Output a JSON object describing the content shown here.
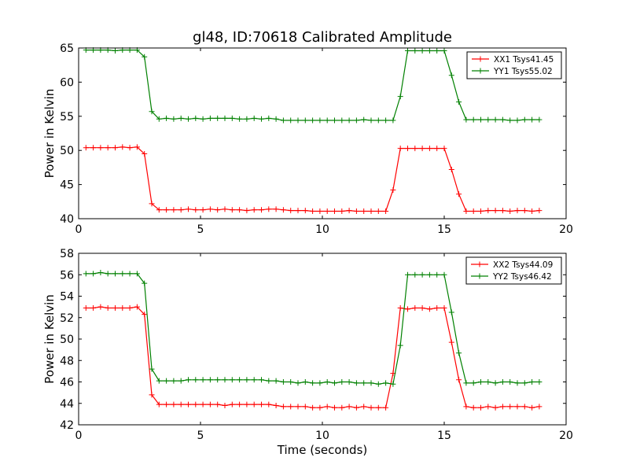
{
  "figure": {
    "title": "gl48, ID:70618 Calibrated Amplitude",
    "xlabel": "Time (seconds)"
  },
  "chart_data": [
    {
      "type": "line",
      "title": "gl48, ID:70618 Calibrated Amplitude",
      "xlabel": "",
      "ylabel": "Power in Kelvin",
      "xlim": [
        0,
        20
      ],
      "ylim": [
        40,
        65
      ],
      "xticks": [
        0,
        5,
        10,
        15,
        20
      ],
      "yticks": [
        40,
        45,
        50,
        55,
        60,
        65
      ],
      "grid": false,
      "legend_position": "top-right",
      "x": [
        0.3,
        0.6,
        0.9,
        1.2,
        1.5,
        1.8,
        2.1,
        2.4,
        2.7,
        3.0,
        3.3,
        3.6,
        3.9,
        4.2,
        4.5,
        4.8,
        5.1,
        5.4,
        5.7,
        6.0,
        6.3,
        6.6,
        6.9,
        7.2,
        7.5,
        7.8,
        8.1,
        8.4,
        8.7,
        9.0,
        9.3,
        9.6,
        9.9,
        10.2,
        10.5,
        10.8,
        11.1,
        11.4,
        11.7,
        12.0,
        12.3,
        12.6,
        12.9,
        13.2,
        13.5,
        13.8,
        14.1,
        14.4,
        14.7,
        15.0,
        15.3,
        15.6,
        15.9,
        16.2,
        16.5,
        16.8,
        17.1,
        17.4,
        17.7,
        18.0,
        18.3,
        18.6,
        18.9
      ],
      "series": [
        {
          "name": "XX1 Tsys41.45",
          "color": "#ff0000",
          "values": [
            50.4,
            50.4,
            50.4,
            50.4,
            50.4,
            50.5,
            50.4,
            50.5,
            49.5,
            42.2,
            41.3,
            41.3,
            41.3,
            41.3,
            41.4,
            41.3,
            41.3,
            41.4,
            41.3,
            41.4,
            41.3,
            41.3,
            41.2,
            41.3,
            41.3,
            41.4,
            41.4,
            41.3,
            41.2,
            41.2,
            41.2,
            41.1,
            41.1,
            41.1,
            41.1,
            41.1,
            41.2,
            41.1,
            41.1,
            41.1,
            41.1,
            41.1,
            44.2,
            50.3,
            50.3,
            50.3,
            50.3,
            50.3,
            50.3,
            50.3,
            47.2,
            43.6,
            41.1,
            41.1,
            41.1,
            41.2,
            41.2,
            41.2,
            41.1,
            41.2,
            41.2,
            41.1,
            41.2
          ]
        },
        {
          "name": "YY1 Tsys55.02",
          "color": "#008000",
          "values": [
            64.7,
            64.7,
            64.7,
            64.7,
            64.6,
            64.7,
            64.7,
            64.7,
            63.7,
            55.7,
            54.6,
            54.7,
            54.6,
            54.7,
            54.6,
            54.7,
            54.6,
            54.7,
            54.7,
            54.7,
            54.7,
            54.6,
            54.6,
            54.7,
            54.6,
            54.7,
            54.6,
            54.4,
            54.4,
            54.4,
            54.4,
            54.4,
            54.4,
            54.4,
            54.4,
            54.4,
            54.4,
            54.4,
            54.5,
            54.4,
            54.4,
            54.4,
            54.4,
            57.9,
            64.6,
            64.6,
            64.6,
            64.6,
            64.6,
            64.6,
            61.0,
            57.1,
            54.5,
            54.5,
            54.5,
            54.5,
            54.5,
            54.5,
            54.4,
            54.4,
            54.5,
            54.5,
            54.5
          ]
        }
      ]
    },
    {
      "type": "line",
      "title": "",
      "xlabel": "Time (seconds)",
      "ylabel": "Power in Kelvin",
      "xlim": [
        0,
        20
      ],
      "ylim": [
        42,
        58
      ],
      "xticks": [
        0,
        5,
        10,
        15,
        20
      ],
      "yticks": [
        42,
        44,
        46,
        48,
        50,
        52,
        54,
        56,
        58
      ],
      "grid": false,
      "legend_position": "top-right",
      "x": [
        0.3,
        0.6,
        0.9,
        1.2,
        1.5,
        1.8,
        2.1,
        2.4,
        2.7,
        3.0,
        3.3,
        3.6,
        3.9,
        4.2,
        4.5,
        4.8,
        5.1,
        5.4,
        5.7,
        6.0,
        6.3,
        6.6,
        6.9,
        7.2,
        7.5,
        7.8,
        8.1,
        8.4,
        8.7,
        9.0,
        9.3,
        9.6,
        9.9,
        10.2,
        10.5,
        10.8,
        11.1,
        11.4,
        11.7,
        12.0,
        12.3,
        12.6,
        12.9,
        13.2,
        13.5,
        13.8,
        14.1,
        14.4,
        14.7,
        15.0,
        15.3,
        15.6,
        15.9,
        16.2,
        16.5,
        16.8,
        17.1,
        17.4,
        17.7,
        18.0,
        18.3,
        18.6,
        18.9
      ],
      "series": [
        {
          "name": "XX2 Tsys44.09",
          "color": "#ff0000",
          "values": [
            52.9,
            52.9,
            53.0,
            52.9,
            52.9,
            52.9,
            52.9,
            53.0,
            52.3,
            44.8,
            43.9,
            43.9,
            43.9,
            43.9,
            43.9,
            43.9,
            43.9,
            43.9,
            43.9,
            43.8,
            43.9,
            43.9,
            43.9,
            43.9,
            43.9,
            43.9,
            43.8,
            43.7,
            43.7,
            43.7,
            43.7,
            43.6,
            43.6,
            43.7,
            43.6,
            43.6,
            43.7,
            43.6,
            43.7,
            43.6,
            43.6,
            43.6,
            46.8,
            52.9,
            52.8,
            52.9,
            52.9,
            52.8,
            52.9,
            52.9,
            49.7,
            46.2,
            43.7,
            43.6,
            43.6,
            43.7,
            43.6,
            43.7,
            43.7,
            43.7,
            43.7,
            43.6,
            43.7
          ]
        },
        {
          "name": "YY2 Tsys46.42",
          "color": "#008000",
          "values": [
            56.1,
            56.1,
            56.2,
            56.1,
            56.1,
            56.1,
            56.1,
            56.1,
            55.2,
            47.2,
            46.1,
            46.1,
            46.1,
            46.1,
            46.2,
            46.2,
            46.2,
            46.2,
            46.2,
            46.2,
            46.2,
            46.2,
            46.2,
            46.2,
            46.2,
            46.1,
            46.1,
            46.0,
            46.0,
            45.9,
            46.0,
            45.9,
            45.9,
            46.0,
            45.9,
            46.0,
            46.0,
            45.9,
            45.9,
            45.9,
            45.8,
            45.9,
            45.8,
            49.4,
            56.0,
            56.0,
            56.0,
            56.0,
            56.0,
            56.0,
            52.5,
            48.7,
            45.9,
            45.9,
            46.0,
            46.0,
            45.9,
            46.0,
            46.0,
            45.9,
            45.9,
            46.0,
            46.0
          ]
        }
      ]
    }
  ]
}
